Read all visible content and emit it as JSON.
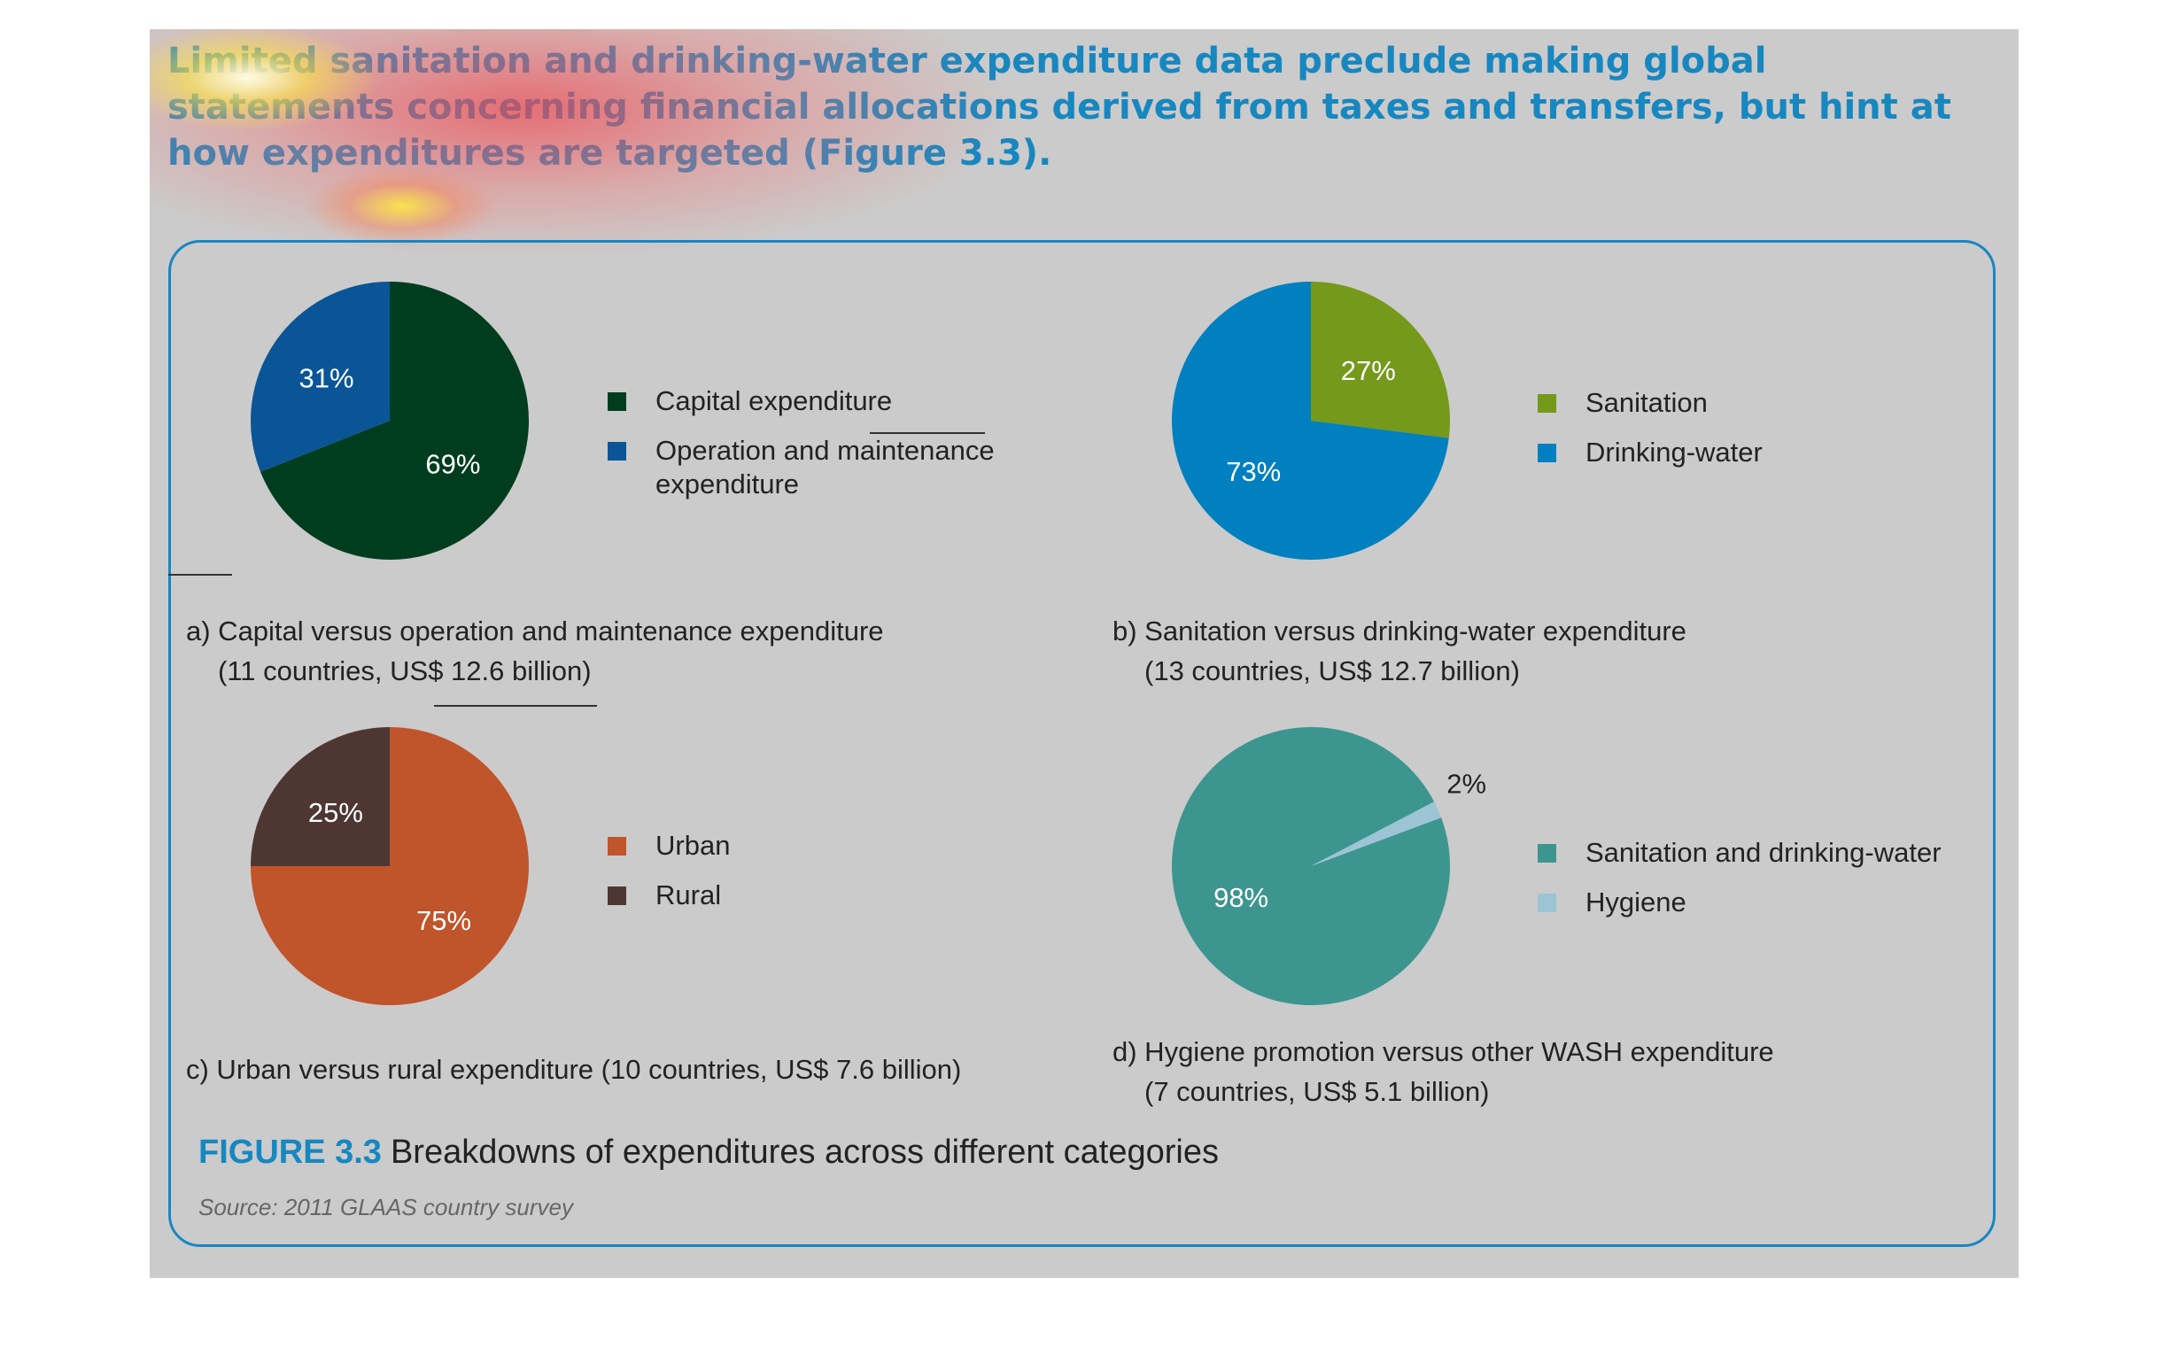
{
  "intro_text": "Limited sanitation and drinking-water expenditure data preclude making global statements concerning financial allocations derived from taxes and transfers, but hint at how expenditures are targeted (Figure 3.3).",
  "figure": {
    "number": "FIGURE 3.3",
    "title": "Breakdowns of expenditures across different categories",
    "source": "Source: 2011 GLAAS country survey"
  },
  "chart_data": [
    {
      "type": "pie",
      "title": "a) Capital versus operation and maintenance expenditure",
      "subtitle": "(11 countries, US$ 12.6 billion)",
      "slices": [
        {
          "label": "Capital expenditure",
          "value": 69,
          "display": "69%",
          "color": "#003d1e"
        },
        {
          "label": "Operation and maintenance expenditure",
          "display_lines": [
            "Operation and maintenance",
            "expenditure"
          ],
          "value": 31,
          "display": "31%",
          "color": "#0a5596"
        }
      ]
    },
    {
      "type": "pie",
      "title": "b) Sanitation versus drinking-water expenditure",
      "subtitle": "(13 countries, US$ 12.7 billion)",
      "slices": [
        {
          "label": "Sanitation",
          "value": 27,
          "display": "27%",
          "color": "#74991b"
        },
        {
          "label": "Drinking-water",
          "value": 73,
          "display": "73%",
          "color": "#0080bf"
        }
      ]
    },
    {
      "type": "pie",
      "title": "c) Urban versus rural expenditure (10 countries, US$ 7.6 billion)",
      "subtitle": "",
      "slices": [
        {
          "label": "Urban",
          "value": 75,
          "display": "75%",
          "color": "#c0542a"
        },
        {
          "label": "Rural",
          "value": 25,
          "display": "25%",
          "color": "#4e3733"
        }
      ]
    },
    {
      "type": "pie",
      "title": "d) Hygiene promotion versus other WASH expenditure",
      "subtitle": "(7 countries, US$ 5.1 billion)",
      "slices": [
        {
          "label": "Sanitation and drinking-water",
          "value": 98,
          "display": "98%",
          "color": "#3c968f"
        },
        {
          "label": "Hygiene",
          "value": 2,
          "display": "2%",
          "color": "#9dc4d5"
        }
      ]
    }
  ]
}
